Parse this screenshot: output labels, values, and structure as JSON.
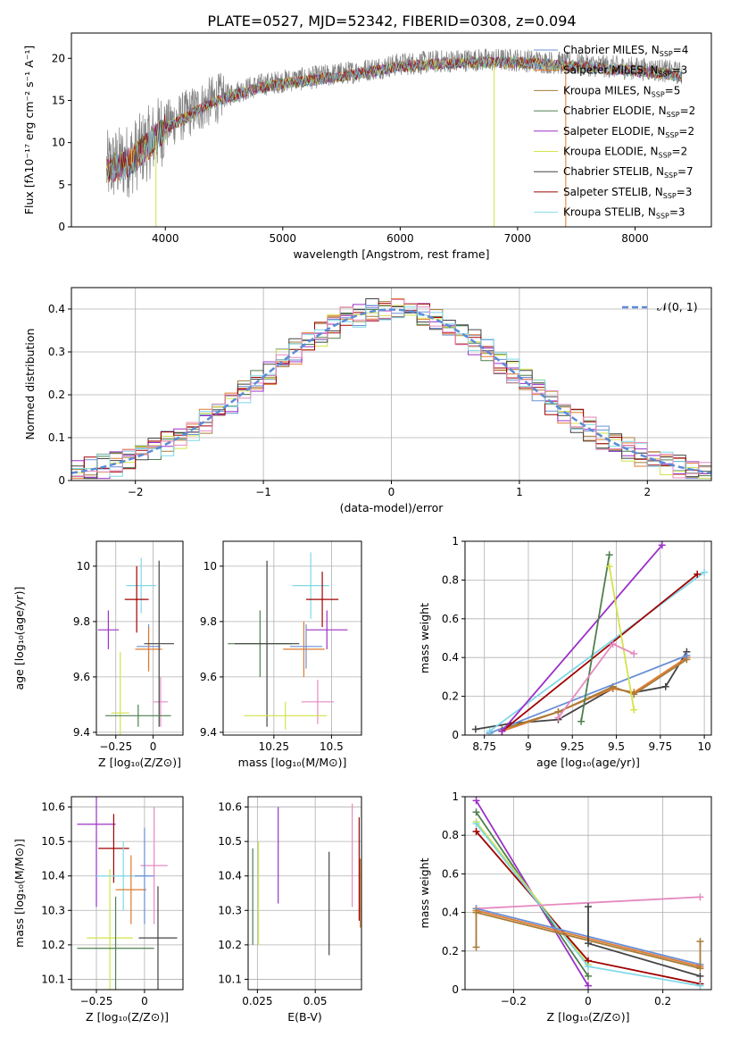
{
  "figure_title": "PLATE=0527, MJD=52342, FIBERID=0308, z=0.094",
  "colors": {
    "Chabrier MILES": "#6a8fd6",
    "Salpeter MILES": "#e07a2e",
    "Kroupa MILES": "#a67c3a",
    "Chabrier ELODIE": "#4f7f4f",
    "Salpeter ELODIE": "#9b30c6",
    "Kroupa ELODIE": "#d3e34a",
    "Chabrier STELIB": "#444444",
    "Salpeter STELIB": "#a00000",
    "Kroupa STELIB": "#7fd8e8",
    "Pink": "#e58ac0"
  },
  "chart_data": [
    {
      "type": "line",
      "title": "PLATE=0527, MJD=52342, FIBERID=0308, z=0.094",
      "xlabel": "wavelength [Angstrom, rest frame]",
      "ylabel": "Flux [fλ10⁻¹⁷ erg cm⁻² s⁻¹ A⁻¹]",
      "xlim": [
        3200,
        8650
      ],
      "ylim": [
        0,
        23
      ],
      "xticks": [
        4000,
        5000,
        6000,
        7000,
        8000
      ],
      "yticks": [
        0,
        5,
        10,
        15,
        20
      ],
      "grid": false,
      "legend_position": "right",
      "legend": [
        {
          "label": "Chabrier MILES, N",
          "sub": "SSP",
          "suffix": "=4",
          "color": "Chabrier MILES"
        },
        {
          "label": "Salpeter MILES, N",
          "sub": "SSP",
          "suffix": "=3",
          "color": "Salpeter MILES"
        },
        {
          "label": "Kroupa MILES, N",
          "sub": "SSP",
          "suffix": "=5",
          "color": "Kroupa MILES"
        },
        {
          "label": "Chabrier ELODIE, N",
          "sub": "SSP",
          "suffix": "=2",
          "color": "Chabrier ELODIE"
        },
        {
          "label": "Salpeter ELODIE, N",
          "sub": "SSP",
          "suffix": "=2",
          "color": "Salpeter ELODIE"
        },
        {
          "label": "Kroupa ELODIE, N",
          "sub": "SSP",
          "suffix": "=2",
          "color": "Kroupa ELODIE"
        },
        {
          "label": "Chabrier STELIB, N",
          "sub": "SSP",
          "suffix": "=7",
          "color": "Chabrier STELIB"
        },
        {
          "label": "Salpeter STELIB, N",
          "sub": "SSP",
          "suffix": "=3",
          "color": "Salpeter STELIB"
        },
        {
          "label": "Kroupa STELIB, N",
          "sub": "SSP",
          "suffix": "=3",
          "color": "Kroupa STELIB"
        }
      ],
      "data_range": [
        3500,
        8400
      ],
      "continuum": [
        [
          3500,
          7
        ],
        [
          3700,
          8
        ],
        [
          3900,
          10.5
        ],
        [
          4000,
          12
        ],
        [
          4200,
          13.5
        ],
        [
          4400,
          15
        ],
        [
          4600,
          16
        ],
        [
          4800,
          16.8
        ],
        [
          5000,
          17.3
        ],
        [
          5200,
          17.6
        ],
        [
          5400,
          18
        ],
        [
          5700,
          18.6
        ],
        [
          6000,
          19.3
        ],
        [
          6300,
          19.6
        ],
        [
          6600,
          19.8
        ],
        [
          7000,
          19.8
        ],
        [
          7400,
          19.4
        ],
        [
          7800,
          19
        ],
        [
          8200,
          18.6
        ],
        [
          8400,
          18.2
        ]
      ]
    },
    {
      "type": "bar",
      "xlabel": "(data-model)/error",
      "ylabel": "Normed distribution",
      "xlim": [
        -2.5,
        2.5
      ],
      "ylim": [
        0,
        0.45
      ],
      "xticks": [
        -2,
        -1,
        0,
        1,
        2
      ],
      "yticks": [
        0.0,
        0.1,
        0.2,
        0.3,
        0.4
      ],
      "grid": true,
      "legend_position": "top-right",
      "legend": [
        {
          "label": "𝒩(0, 1)",
          "color": "#5b8bd6",
          "dash": true
        }
      ]
    },
    {
      "type": "scatter",
      "xlabel": "Z [log₁₀(Z/Z⊙)]",
      "ylabel": "age  [log₁₀(age/yr)]",
      "xlim": [
        -0.38,
        0.2
      ],
      "ylim": [
        9.39,
        10.09
      ],
      "xticks": [
        -0.25,
        0.0
      ],
      "yticks": [
        9.4,
        9.6,
        9.8,
        10.0
      ],
      "grid": true,
      "points": [
        {
          "x": -0.3,
          "y": 9.77,
          "xerr": 0.07,
          "yerr": 0.07,
          "color": "Salpeter ELODIE"
        },
        {
          "x": -0.22,
          "y": 9.47,
          "xerr": 0.06,
          "yerr": 0.22,
          "color": "Kroupa ELODIE"
        },
        {
          "x": -0.08,
          "y": 9.93,
          "xerr": 0.1,
          "yerr": 0.1,
          "color": "Kroupa STELIB"
        },
        {
          "x": -0.11,
          "y": 9.88,
          "xerr": 0.08,
          "yerr": 0.12,
          "color": "Salpeter STELIB"
        },
        {
          "x": -0.03,
          "y": 9.71,
          "xerr": 0.08,
          "yerr": 0.08,
          "color": "Chabrier MILES"
        },
        {
          "x": -0.03,
          "y": 9.7,
          "xerr": 0.09,
          "yerr": 0.08,
          "color": "Salpeter MILES"
        },
        {
          "x": 0.05,
          "y": 9.51,
          "xerr": 0.05,
          "yerr": 0.09,
          "color": "Pink"
        },
        {
          "x": 0.04,
          "y": 9.72,
          "xerr": 0.1,
          "yerr": 0.3,
          "color": "Chabrier STELIB"
        },
        {
          "x": -0.1,
          "y": 9.46,
          "xerr": 0.22,
          "yerr": 0.04,
          "color": "Chabrier ELODIE"
        }
      ]
    },
    {
      "type": "scatter",
      "xlabel": "mass [log₁₀(M/M⊙)]",
      "ylabel": "",
      "xlim": [
        10.03,
        10.63
      ],
      "ylim": [
        9.39,
        10.09
      ],
      "xticks": [
        10.25,
        10.5
      ],
      "yticks": [
        9.4,
        9.6,
        9.8,
        10.0
      ],
      "grid": true,
      "points": [
        {
          "x": 10.19,
          "y": 9.72,
          "xerr": 0.14,
          "yerr": 0.12,
          "color": "Chabrier ELODIE"
        },
        {
          "x": 10.22,
          "y": 9.72,
          "xerr": 0.14,
          "yerr": 0.3,
          "color": "Chabrier STELIB"
        },
        {
          "x": 10.41,
          "y": 9.93,
          "xerr": 0.08,
          "yerr": 0.12,
          "color": "Kroupa STELIB"
        },
        {
          "x": 10.46,
          "y": 9.88,
          "xerr": 0.07,
          "yerr": 0.1,
          "color": "Salpeter STELIB"
        },
        {
          "x": 10.48,
          "y": 9.77,
          "xerr": 0.09,
          "yerr": 0.07,
          "color": "Salpeter ELODIE"
        },
        {
          "x": 10.38,
          "y": 9.7,
          "xerr": 0.09,
          "yerr": 0.1,
          "color": "Salpeter MILES"
        },
        {
          "x": 10.39,
          "y": 9.71,
          "xerr": 0.07,
          "yerr": 0.08,
          "color": "Chabrier MILES"
        },
        {
          "x": 10.44,
          "y": 9.51,
          "xerr": 0.07,
          "yerr": 0.08,
          "color": "Pink"
        },
        {
          "x": 10.3,
          "y": 9.46,
          "xerr": 0.18,
          "yerr": 0.05,
          "color": "Kroupa ELODIE"
        }
      ]
    },
    {
      "type": "line",
      "xlabel": "age  [log₁₀(age/yr)]",
      "ylabel": "mass weight",
      "xlim": [
        8.64,
        10.04
      ],
      "ylim": [
        0,
        1
      ],
      "xticks": [
        8.75,
        9.0,
        9.25,
        9.5,
        9.75,
        10.0
      ],
      "yticks": [
        0.0,
        0.2,
        0.4,
        0.6,
        0.8,
        1.0
      ],
      "grid": true,
      "series": [
        {
          "color": "Chabrier STELIB",
          "points": [
            [
              8.7,
              0.03
            ],
            [
              8.9,
              0.06
            ],
            [
              9.17,
              0.08
            ],
            [
              9.48,
              0.24
            ],
            [
              9.6,
              0.22
            ],
            [
              9.78,
              0.25
            ],
            [
              9.9,
              0.43
            ]
          ]
        },
        {
          "color": "Salpeter MILES",
          "points": [
            [
              8.85,
              0.02
            ],
            [
              9.17,
              0.12
            ],
            [
              9.48,
              0.24
            ],
            [
              9.6,
              0.22
            ],
            [
              9.9,
              0.4
            ]
          ]
        },
        {
          "color": "Kroupa MILES",
          "points": [
            [
              8.85,
              0.03
            ],
            [
              9.17,
              0.12
            ],
            [
              9.48,
              0.25
            ],
            [
              9.6,
              0.21
            ],
            [
              9.9,
              0.39
            ]
          ]
        },
        {
          "color": "Chabrier MILES",
          "points": [
            [
              8.78,
              0.01
            ],
            [
              9.9,
              0.41
            ]
          ]
        },
        {
          "color": "Kroupa STELIB",
          "points": [
            [
              8.78,
              0.02
            ],
            [
              10.0,
              0.84
            ]
          ]
        },
        {
          "color": "Salpeter STELIB",
          "points": [
            [
              8.85,
              0.02
            ],
            [
              9.96,
              0.83
            ]
          ]
        },
        {
          "color": "Salpeter ELODIE",
          "points": [
            [
              8.85,
              0.02
            ],
            [
              9.76,
              0.98
            ]
          ]
        },
        {
          "color": "Chabrier ELODIE",
          "points": [
            [
              9.3,
              0.07
            ],
            [
              9.46,
              0.93
            ]
          ]
        },
        {
          "color": "Kroupa ELODIE",
          "points": [
            [
              9.46,
              0.87
            ],
            [
              9.6,
              0.13
            ]
          ]
        },
        {
          "color": "Pink",
          "points": [
            [
              9.17,
              0.09
            ],
            [
              9.48,
              0.47
            ],
            [
              9.6,
              0.42
            ]
          ]
        }
      ]
    },
    {
      "type": "scatter",
      "xlabel": "Z [log₁₀(Z/Z⊙)]",
      "ylabel": "mass [log₁₀(M/M⊙)]",
      "xlim": [
        -0.38,
        0.2
      ],
      "ylim": [
        10.07,
        10.63
      ],
      "xticks": [
        -0.25,
        0.0
      ],
      "yticks": [
        10.1,
        10.2,
        10.3,
        10.4,
        10.5,
        10.6
      ],
      "grid": true,
      "points": [
        {
          "x": -0.25,
          "y": 10.55,
          "xerr": 0.1,
          "yerr": 0.24,
          "color": "Salpeter ELODIE"
        },
        {
          "x": -0.16,
          "y": 10.48,
          "xerr": 0.08,
          "yerr": 0.1,
          "color": "Salpeter STELIB"
        },
        {
          "x": -0.11,
          "y": 10.4,
          "xerr": 0.14,
          "yerr": 0.1,
          "color": "Kroupa STELIB"
        },
        {
          "x": -0.18,
          "y": 10.22,
          "xerr": 0.12,
          "yerr": 0.2,
          "color": "Kroupa ELODIE"
        },
        {
          "x": -0.15,
          "y": 10.19,
          "xerr": 0.2,
          "yerr": 0.15,
          "color": "Chabrier ELODIE"
        },
        {
          "x": -0.07,
          "y": 10.36,
          "xerr": 0.08,
          "yerr": 0.1,
          "color": "Salpeter MILES"
        },
        {
          "x": 0.05,
          "y": 10.43,
          "xerr": 0.07,
          "yerr": 0.17,
          "color": "Pink"
        },
        {
          "x": 0.07,
          "y": 10.22,
          "xerr": 0.1,
          "yerr": 0.15,
          "color": "Chabrier STELIB"
        },
        {
          "x": 0.0,
          "y": 10.4,
          "xerr": 0.05,
          "yerr": 0.14,
          "color": "Chabrier MILES"
        }
      ]
    },
    {
      "type": "scatter",
      "xlabel": "E(B-V)",
      "ylabel": "",
      "xlim": [
        0.021,
        0.07
      ],
      "ylim": [
        10.07,
        10.63
      ],
      "xticks": [
        0.025,
        0.05
      ],
      "yticks": [
        10.1,
        10.2,
        10.3,
        10.4,
        10.5,
        10.6
      ],
      "grid": true,
      "points": [
        {
          "x": 0.023,
          "y": 10.34,
          "yerr": 0.14,
          "color": "Chabrier ELODIE"
        },
        {
          "x": 0.0255,
          "y": 10.35,
          "yerr": 0.15,
          "color": "Kroupa ELODIE"
        },
        {
          "x": 0.034,
          "y": 10.46,
          "yerr": 0.14,
          "color": "Salpeter ELODIE"
        },
        {
          "x": 0.056,
          "y": 10.32,
          "yerr": 0.15,
          "color": "Chabrier STELIB"
        },
        {
          "x": 0.066,
          "y": 10.46,
          "yerr": 0.15,
          "color": "Pink"
        },
        {
          "x": 0.069,
          "y": 10.42,
          "yerr": 0.15,
          "color": "Salpeter STELIB"
        },
        {
          "x": 0.0695,
          "y": 10.35,
          "yerr": 0.1,
          "color": "Salpeter MILES"
        }
      ]
    },
    {
      "type": "line",
      "xlabel": "Z [log₁₀(Z/Z⊙)]",
      "ylabel": "mass weight",
      "xlim": [
        -0.33,
        0.33
      ],
      "ylim": [
        0,
        1
      ],
      "xticks": [
        -0.2,
        0.0,
        0.2
      ],
      "yticks": [
        0.0,
        0.2,
        0.4,
        0.6,
        0.8,
        1.0
      ],
      "grid": true,
      "series": [
        {
          "color": "Salpeter ELODIE",
          "points": [
            [
              -0.3,
              0.98
            ],
            [
              0,
              0.02
            ]
          ]
        },
        {
          "color": "Chabrier ELODIE",
          "points": [
            [
              -0.3,
              0.92
            ],
            [
              0,
              0.07
            ]
          ]
        },
        {
          "color": "Kroupa ELODIE",
          "points": [
            [
              -0.3,
              0.87
            ],
            [
              0,
              0.13
            ]
          ]
        },
        {
          "color": "Salpeter STELIB",
          "points": [
            [
              -0.3,
              0.82
            ],
            [
              0,
              0.15
            ],
            [
              0.3,
              0.03
            ]
          ]
        },
        {
          "color": "Kroupa STELIB",
          "points": [
            [
              -0.3,
              0.86
            ],
            [
              0,
              0.12
            ],
            [
              0.3,
              0.02
            ]
          ]
        },
        {
          "color": "Pink",
          "points": [
            [
              -0.3,
              0.42
            ],
            [
              0.3,
              0.48
            ]
          ]
        },
        {
          "color": "Chabrier MILES",
          "points": [
            [
              -0.3,
              0.42
            ],
            [
              0.3,
              0.13
            ]
          ]
        },
        {
          "color": "Salpeter MILES",
          "points": [
            [
              -0.3,
              0.41
            ],
            [
              0.3,
              0.12
            ]
          ]
        },
        {
          "color": "Kroupa MILES",
          "points": [
            [
              -0.3,
              0.22
            ],
            [
              -0.3,
              0.4
            ],
            [
              0.3,
              0.11
            ],
            [
              0.3,
              0.25
            ]
          ]
        },
        {
          "color": "Chabrier STELIB",
          "points": [
            [
              0,
              0.43
            ],
            [
              0,
              0.24
            ],
            [
              0.3,
              0.07
            ]
          ]
        }
      ]
    }
  ]
}
